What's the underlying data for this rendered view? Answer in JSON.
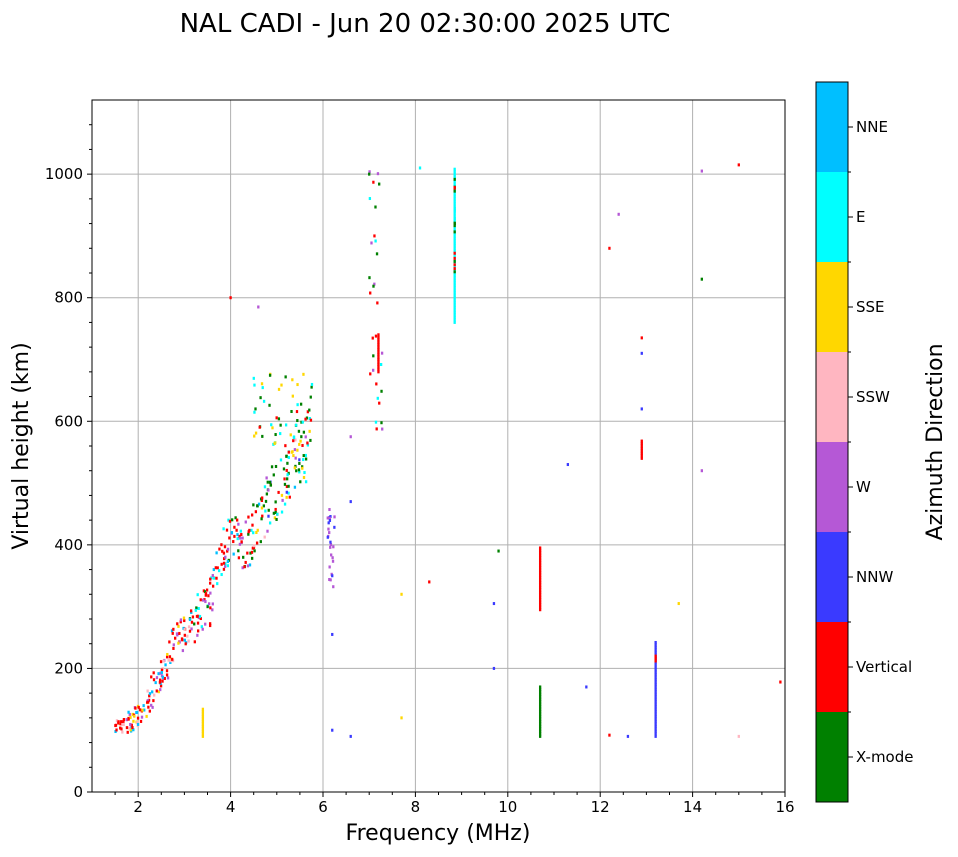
{
  "chart_data": {
    "type": "scatter",
    "title": "NAL CADI - Jun 20 02:30:00 2025 UTC",
    "xlabel": "Frequency (MHz)",
    "ylabel": "Virtual height (km)",
    "xlim": [
      1.0,
      16.0
    ],
    "ylim": [
      0,
      1120
    ],
    "xticks": [
      2,
      4,
      6,
      8,
      10,
      12,
      14,
      16
    ],
    "yticks": [
      0,
      200,
      400,
      600,
      800,
      1000
    ],
    "xtick_labels": [
      "2",
      "4",
      "6",
      "8",
      "10",
      "12",
      "14",
      "16"
    ],
    "ytick_labels": [
      "0",
      "200",
      "400",
      "600",
      "800",
      "1000"
    ],
    "grid": true,
    "colorbar": {
      "title": "Azimuth Direction",
      "categories": [
        {
          "label": "X-mode",
          "color": "#008000"
        },
        {
          "label": "Vertical",
          "color": "#ff0000"
        },
        {
          "label": "NNW",
          "color": "#3a3aff"
        },
        {
          "label": "W",
          "color": "#b558d6"
        },
        {
          "label": "SSW",
          "color": "#ffb6c1"
        },
        {
          "label": "SSE",
          "color": "#ffd700"
        },
        {
          "label": "E",
          "color": "#00ffff"
        },
        {
          "label": "NNE",
          "color": "#00bfff"
        }
      ]
    },
    "trace": {
      "description": "F-layer trace of echoes rising from ~100 km at 1.5 MHz to ~600 km near 5.8 MHz",
      "points": [
        [
          1.5,
          100
        ],
        [
          1.7,
          110
        ],
        [
          1.9,
          118
        ],
        [
          2.1,
          125
        ],
        [
          2.3,
          160
        ],
        [
          2.5,
          190
        ],
        [
          2.7,
          225
        ],
        [
          2.9,
          250
        ],
        [
          3.1,
          262
        ],
        [
          3.3,
          285
        ],
        [
          3.5,
          300
        ],
        [
          3.7,
          360
        ],
        [
          3.9,
          395
        ],
        [
          4.1,
          410
        ],
        [
          4.3,
          400
        ],
        [
          4.5,
          420
        ],
        [
          4.7,
          450
        ],
        [
          4.9,
          480
        ],
        [
          5.1,
          500
        ],
        [
          5.3,
          520
        ],
        [
          5.5,
          545
        ],
        [
          5.7,
          575
        ]
      ]
    },
    "columns": [
      {
        "f": 10.7,
        "h0": 90,
        "h1": 170,
        "azimuth": "X-mode"
      },
      {
        "f": 10.7,
        "h0": 295,
        "h1": 395,
        "azimuth": "Vertical"
      },
      {
        "f": 13.2,
        "h0": 90,
        "h1": 245,
        "azimuth": "NNW"
      },
      {
        "f": 13.2,
        "h0": 212,
        "h1": 222,
        "azimuth": "Vertical"
      },
      {
        "f": 8.85,
        "h0": 760,
        "h1": 1010,
        "azimuth": "E"
      },
      {
        "f": 12.9,
        "h0": 540,
        "h1": 570,
        "azimuth": "Vertical"
      },
      {
        "f": 3.4,
        "h0": 90,
        "h1": 135,
        "azimuth": "SSE"
      },
      {
        "f": 7.2,
        "h0": 680,
        "h1": 740,
        "azimuth": "Vertical"
      }
    ],
    "echoes": [
      {
        "f": 6.2,
        "h": 350,
        "azimuth": "NNW"
      },
      {
        "f": 6.2,
        "h": 255,
        "azimuth": "NNW"
      },
      {
        "f": 6.2,
        "h": 100,
        "azimuth": "NNW"
      },
      {
        "f": 6.6,
        "h": 90,
        "azimuth": "NNW"
      },
      {
        "f": 7.7,
        "h": 320,
        "azimuth": "SSE"
      },
      {
        "f": 7.7,
        "h": 120,
        "azimuth": "SSE"
      },
      {
        "f": 8.3,
        "h": 340,
        "azimuth": "Vertical"
      },
      {
        "f": 9.7,
        "h": 305,
        "azimuth": "NNW"
      },
      {
        "f": 9.7,
        "h": 200,
        "azimuth": "NNW"
      },
      {
        "f": 9.8,
        "h": 390,
        "azimuth": "X-mode"
      },
      {
        "f": 11.3,
        "h": 530,
        "azimuth": "NNW"
      },
      {
        "f": 11.7,
        "h": 170,
        "azimuth": "NNW"
      },
      {
        "f": 12.2,
        "h": 880,
        "azimuth": "Vertical"
      },
      {
        "f": 12.9,
        "h": 620,
        "azimuth": "NNW"
      },
      {
        "f": 12.9,
        "h": 735,
        "azimuth": "Vertical"
      },
      {
        "f": 12.9,
        "h": 710,
        "azimuth": "NNW"
      },
      {
        "f": 13.7,
        "h": 305,
        "azimuth": "SSE"
      },
      {
        "f": 14.2,
        "h": 520,
        "azimuth": "W"
      },
      {
        "f": 14.2,
        "h": 1005,
        "azimuth": "W"
      },
      {
        "f": 14.2,
        "h": 830,
        "azimuth": "X-mode"
      },
      {
        "f": 15.0,
        "h": 1015,
        "azimuth": "Vertical"
      },
      {
        "f": 15.0,
        "h": 90,
        "azimuth": "SSW"
      },
      {
        "f": 15.9,
        "h": 178,
        "azimuth": "Vertical"
      },
      {
        "f": 7.0,
        "h": 1000,
        "azimuth": "X-mode"
      },
      {
        "f": 8.1,
        "h": 1010,
        "azimuth": "E"
      },
      {
        "f": 12.4,
        "h": 935,
        "azimuth": "W"
      },
      {
        "f": 4.0,
        "h": 800,
        "azimuth": "Vertical"
      },
      {
        "f": 4.6,
        "h": 785,
        "azimuth": "W"
      },
      {
        "f": 6.6,
        "h": 575,
        "azimuth": "W"
      },
      {
        "f": 6.6,
        "h": 470,
        "azimuth": "NNW"
      },
      {
        "f": 12.6,
        "h": 90,
        "azimuth": "NNW"
      },
      {
        "f": 12.2,
        "h": 92,
        "azimuth": "Vertical"
      }
    ]
  }
}
